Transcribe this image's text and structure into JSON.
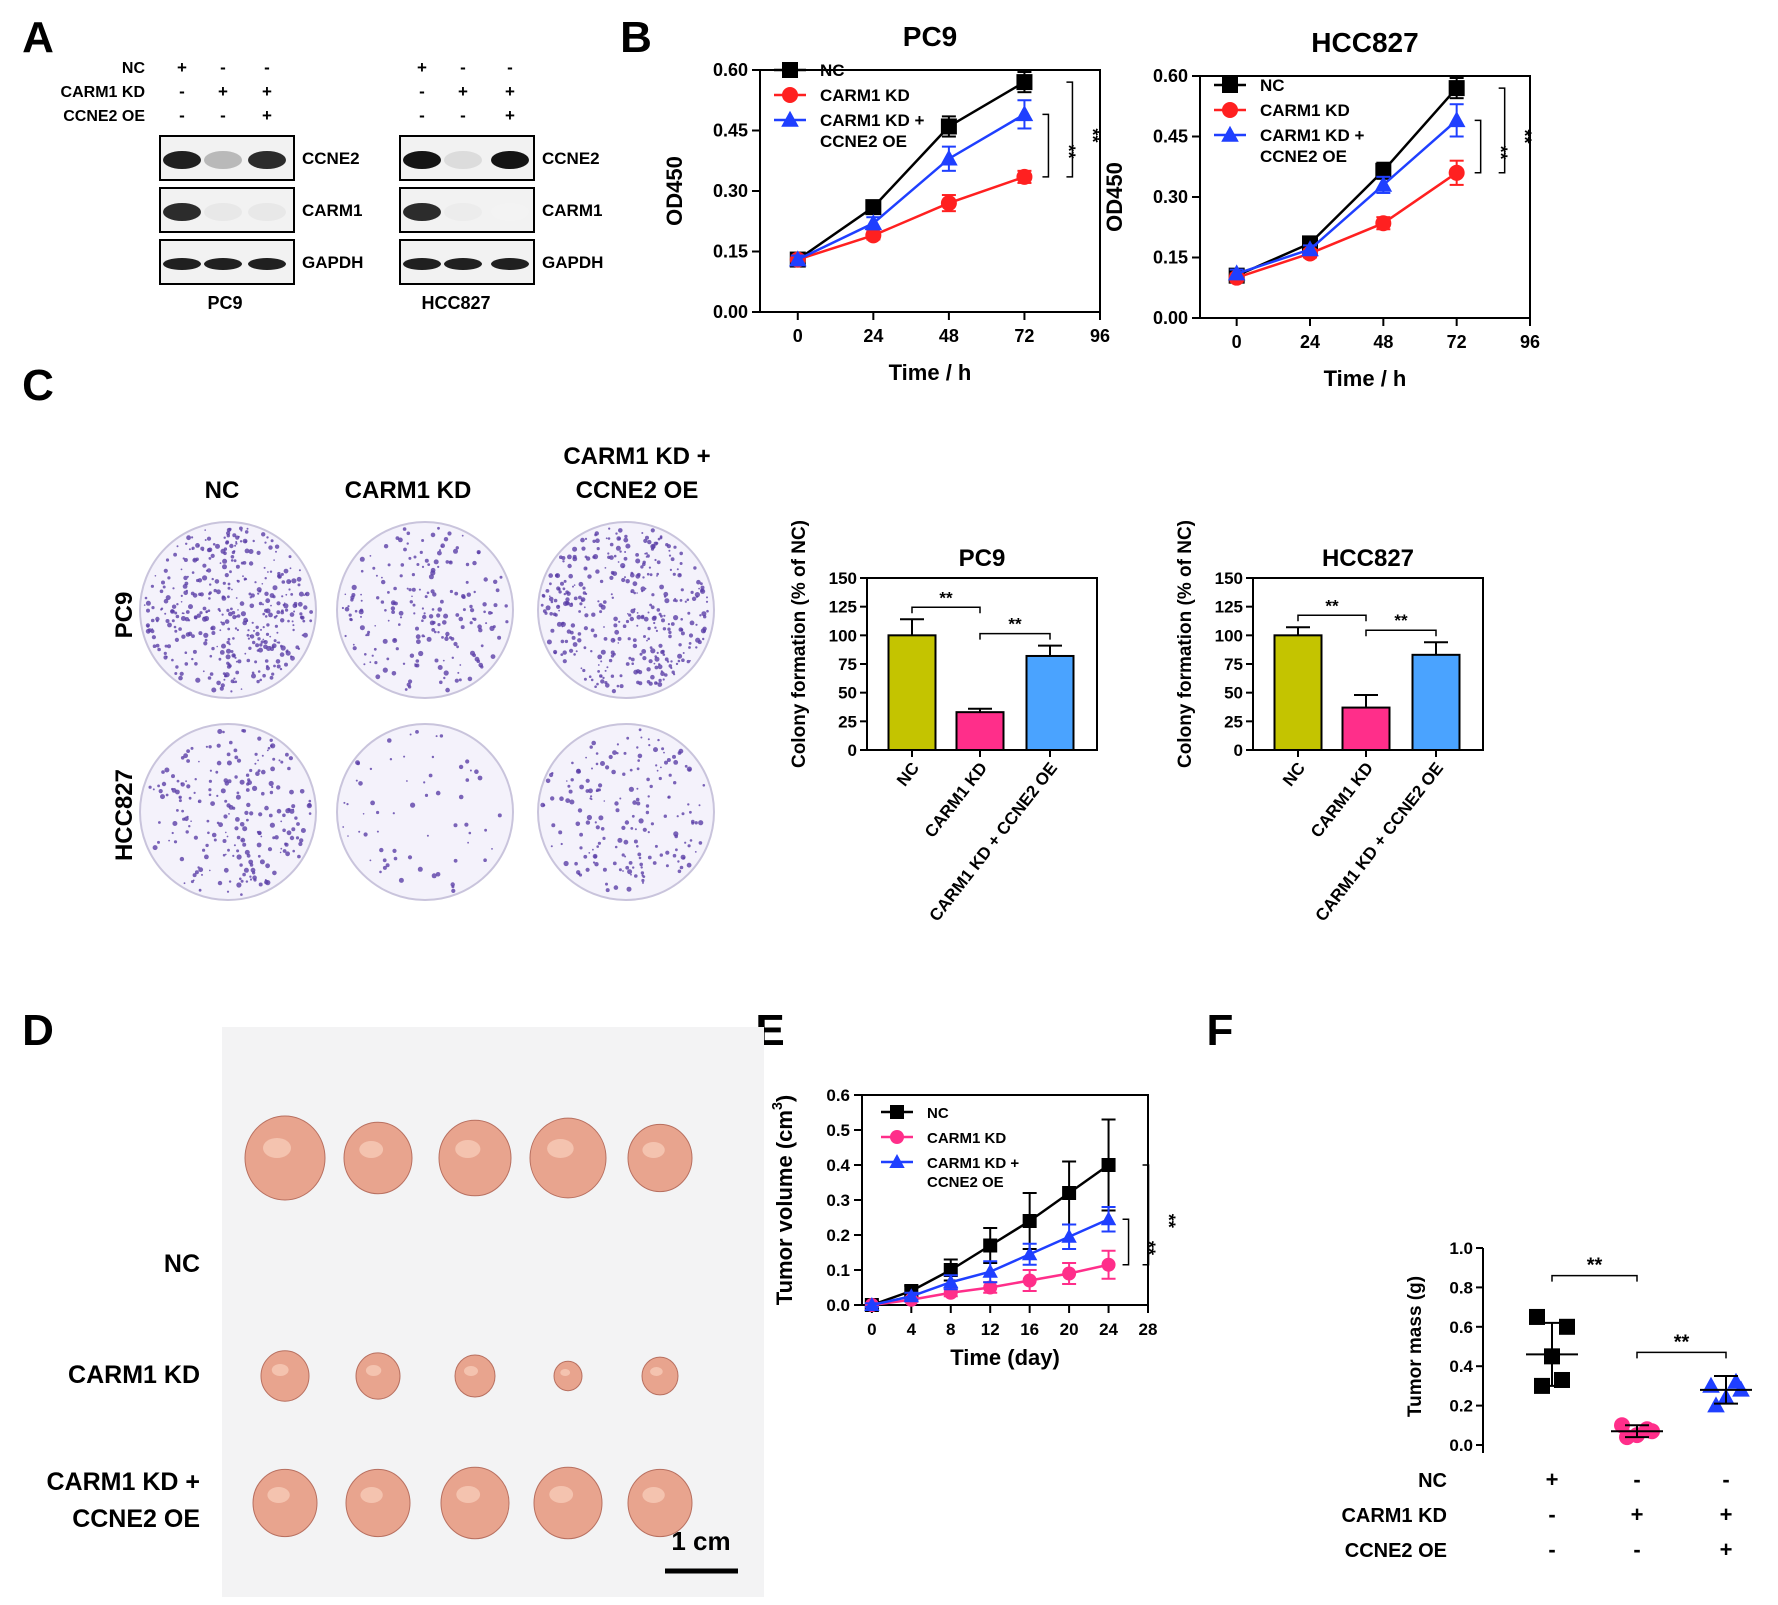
{
  "panel_labels": [
    "A",
    "B",
    "C",
    "D",
    "E",
    "F"
  ],
  "panelA": {
    "conditions": [
      {
        "label": "NC",
        "pc9": [
          "+",
          "-",
          "-"
        ],
        "hcc": [
          "+",
          "-",
          "-"
        ]
      },
      {
        "label": "CARM1 KD",
        "pc9": [
          "-",
          "+",
          "+"
        ],
        "hcc": [
          "-",
          "+",
          "+"
        ]
      },
      {
        "label": "CCNE2 OE",
        "pc9": [
          "-",
          "-",
          "+"
        ],
        "hcc": [
          "-",
          "-",
          "+"
        ]
      }
    ],
    "blot_labels": [
      "CCNE2",
      "CARM1",
      "GAPDH"
    ],
    "blot_intensity": {
      "pc9": {
        "CCNE2": [
          0.95,
          0.3,
          0.9
        ],
        "CARM1": [
          0.9,
          0.1,
          0.1
        ],
        "GAPDH": [
          0.95,
          0.95,
          0.95
        ]
      },
      "hcc": {
        "CCNE2": [
          1.0,
          0.15,
          1.0
        ],
        "CARM1": [
          0.9,
          0.08,
          0.05
        ],
        "GAPDH": [
          0.95,
          0.95,
          0.95
        ]
      }
    },
    "cell_lines": [
      "PC9",
      "HCC827"
    ]
  },
  "panelC": {
    "column_headers": [
      "NC",
      "CARM1 KD",
      "CARM1 KD +",
      "CCNE2 OE"
    ],
    "row_labels": [
      "PC9",
      "HCC827"
    ],
    "colony_density": [
      [
        1.0,
        0.5,
        0.9
      ],
      [
        0.55,
        0.15,
        0.45
      ]
    ],
    "colony_color": "#5b3fa8"
  },
  "panelD": {
    "row_labels": [
      "NC",
      "CARM1 KD",
      "CARM1 KD +",
      "CCNE2 OE"
    ],
    "scale_bar": "1 cm",
    "tumor_color": "#e8a48e",
    "tumor_size": [
      [
        1.0,
        0.85,
        0.9,
        0.95,
        0.8
      ],
      [
        0.6,
        0.55,
        0.5,
        0.35,
        0.45
      ],
      [
        0.8,
        0.8,
        0.85,
        0.85,
        0.8
      ]
    ]
  },
  "f_table": {
    "rows": [
      {
        "label": "NC",
        "values": [
          "+",
          "-",
          "-"
        ]
      },
      {
        "label": "CARM1 KD",
        "values": [
          "-",
          "+",
          "+"
        ]
      },
      {
        "label": "CCNE2 OE",
        "values": [
          "-",
          "-",
          "+"
        ]
      }
    ]
  },
  "colors": {
    "nc": "#000000",
    "kd": "#ff2020",
    "kd_pink": "#ff2e8a",
    "oe": "#1f3fff",
    "bar_nc": "#c4c400",
    "bar_kd": "#ff2e8a",
    "bar_oe": "#4aa3ff"
  },
  "chart_data": [
    {
      "type": "line",
      "title": "PC9",
      "xlabel": "Time / h",
      "ylabel": "OD450",
      "x": [
        0,
        24,
        48,
        72
      ],
      "xticks": [
        "0",
        "24",
        "48",
        "72",
        "96"
      ],
      "xlim": [
        -12,
        96
      ],
      "yticks": [
        "0.00",
        "0.15",
        "0.30",
        "0.45",
        "0.60"
      ],
      "ylim": [
        0,
        0.6
      ],
      "series": [
        {
          "name": "NC",
          "values": [
            0.13,
            0.26,
            0.46,
            0.57
          ],
          "errors": [
            0.01,
            0.015,
            0.025,
            0.025
          ],
          "marker": "square",
          "color": "#000000"
        },
        {
          "name": "CARM1 KD",
          "values": [
            0.13,
            0.19,
            0.27,
            0.335
          ],
          "errors": [
            0.01,
            0.01,
            0.02,
            0.015
          ],
          "marker": "circle",
          "color": "#ff2020"
        },
        {
          "name": "CARM1 KD + CCNE2 OE",
          "name_lines": [
            "CARM1 KD +",
            "CCNE2 OE"
          ],
          "values": [
            0.13,
            0.22,
            0.38,
            0.49
          ],
          "errors": [
            0.01,
            0.015,
            0.03,
            0.035
          ],
          "marker": "triangle",
          "color": "#1f3fff"
        }
      ],
      "significance": [
        "**",
        "**"
      ]
    },
    {
      "type": "line",
      "title": "HCC827",
      "xlabel": "Time / h",
      "ylabel": "OD450",
      "x": [
        0,
        24,
        48,
        72
      ],
      "xticks": [
        "0",
        "24",
        "48",
        "72",
        "96"
      ],
      "xlim": [
        -12,
        96
      ],
      "yticks": [
        "0.00",
        "0.15",
        "0.30",
        "0.45",
        "0.60"
      ],
      "ylim": [
        0,
        0.6
      ],
      "series": [
        {
          "name": "NC",
          "values": [
            0.105,
            0.185,
            0.365,
            0.57
          ],
          "errors": [
            0.01,
            0.01,
            0.02,
            0.025
          ],
          "marker": "square",
          "color": "#000000"
        },
        {
          "name": "CARM1 KD",
          "values": [
            0.1,
            0.16,
            0.235,
            0.36
          ],
          "errors": [
            0.01,
            0.01,
            0.015,
            0.03
          ],
          "marker": "circle",
          "color": "#ff2020"
        },
        {
          "name": "CARM1 KD + CCNE2 OE",
          "name_lines": [
            "CARM1 KD +",
            "CCNE2 OE"
          ],
          "values": [
            0.11,
            0.17,
            0.33,
            0.49
          ],
          "errors": [
            0.01,
            0.01,
            0.02,
            0.04
          ],
          "marker": "triangle",
          "color": "#1f3fff"
        }
      ],
      "significance": [
        "**",
        "**"
      ]
    },
    {
      "type": "bar",
      "title": "PC9",
      "ylabel": "Colony formation (% of NC)",
      "categories": [
        "NC",
        "CARM1 KD",
        "CARM1 KD + CCNE2 OE"
      ],
      "values": [
        100,
        33,
        82
      ],
      "errors": [
        14,
        3,
        9
      ],
      "yticks": [
        "0",
        "25",
        "50",
        "75",
        "100",
        "125",
        "150"
      ],
      "ylim": [
        0,
        150
      ],
      "significance": [
        "**",
        "**"
      ]
    },
    {
      "type": "bar",
      "title": "HCC827",
      "ylabel": "Colony formation (% of NC)",
      "categories": [
        "NC",
        "CARM1 KD",
        "CARM1 KD + CCNE2 OE"
      ],
      "values": [
        100,
        37,
        83
      ],
      "errors": [
        7,
        11,
        11
      ],
      "yticks": [
        "0",
        "25",
        "50",
        "75",
        "100",
        "125",
        "150"
      ],
      "ylim": [
        0,
        150
      ],
      "significance": [
        "**",
        "**"
      ]
    },
    {
      "type": "line",
      "xlabel": "Time (day)",
      "ylabel": "Tumor volume (cm³)",
      "ylabel_parts": [
        "Tumor volume (cm",
        "3",
        ")"
      ],
      "x": [
        0,
        4,
        8,
        12,
        16,
        20,
        24
      ],
      "xticks": [
        "0",
        "4",
        "8",
        "12",
        "16",
        "20",
        "24",
        "28"
      ],
      "xlim": [
        -1,
        28
      ],
      "yticks": [
        "0.0",
        "0.1",
        "0.2",
        "0.3",
        "0.4",
        "0.5",
        "0.6"
      ],
      "ylim": [
        0,
        0.6
      ],
      "series": [
        {
          "name": "NC",
          "values": [
            0.0,
            0.04,
            0.1,
            0.17,
            0.24,
            0.32,
            0.4
          ],
          "errors": [
            0.01,
            0.015,
            0.03,
            0.05,
            0.08,
            0.09,
            0.13
          ],
          "marker": "square",
          "color": "#000000"
        },
        {
          "name": "CARM1 KD",
          "values": [
            0.0,
            0.015,
            0.035,
            0.05,
            0.07,
            0.09,
            0.115
          ],
          "errors": [
            0.005,
            0.005,
            0.01,
            0.015,
            0.03,
            0.03,
            0.04
          ],
          "marker": "circle",
          "color": "#ff2e8a"
        },
        {
          "name": "CARM1 KD + CCNE2 OE",
          "name_lines": [
            "CARM1 KD +",
            "CCNE2 OE"
          ],
          "values": [
            0.0,
            0.025,
            0.065,
            0.095,
            0.145,
            0.195,
            0.245
          ],
          "errors": [
            0.005,
            0.01,
            0.02,
            0.03,
            0.03,
            0.035,
            0.035
          ],
          "marker": "triangle",
          "color": "#1f3fff"
        }
      ],
      "significance": [
        "**",
        "**"
      ]
    },
    {
      "type": "scatter",
      "ylabel": "Tumor mass (g)",
      "groups": [
        "NC",
        "CARM1 KD",
        "CARM1 KD + CCNE2 OE"
      ],
      "points": [
        [
          0.65,
          0.6,
          0.45,
          0.3,
          0.33
        ],
        [
          0.1,
          0.07,
          0.05,
          0.04,
          0.08
        ],
        [
          0.3,
          0.28,
          0.24,
          0.2,
          0.32
        ]
      ],
      "means": [
        0.46,
        0.07,
        0.28
      ],
      "sd": [
        0.16,
        0.03,
        0.07
      ],
      "markers": [
        "square",
        "circle",
        "triangle"
      ],
      "yticks": [
        "0.0",
        "0.2",
        "0.4",
        "0.6",
        "0.8",
        "1.0"
      ],
      "ylim": [
        0,
        1.0
      ],
      "significance": [
        "**",
        "**"
      ]
    }
  ]
}
